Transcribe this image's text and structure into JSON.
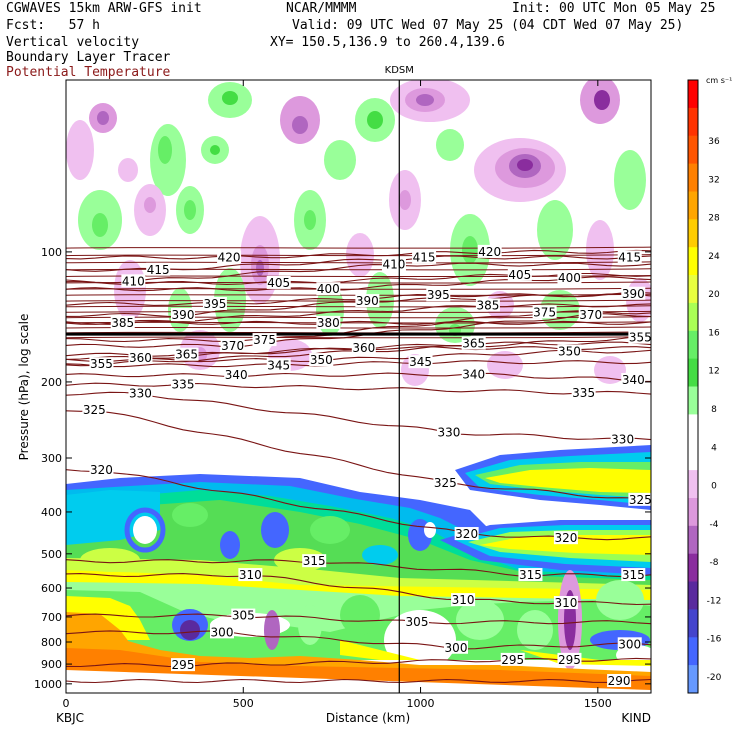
{
  "header": {
    "model": "CGWAVES 15km ARW-GFS init",
    "fcst": "Fcst:   57 h",
    "field1": "Vertical velocity",
    "field2": "Boundary Layer Tracer",
    "field3": "Potential Temperature",
    "org": "NCAR/MMMM",
    "init": "Init: 00 UTC Mon 05 May 25",
    "valid": "Valid: 09 UTC Wed 07 May 25 (04 CDT Wed 07 May 25)",
    "xy": "XY= 150.5,136.9 to 260.4,139.6"
  },
  "station_marker": "KDSM",
  "colorbar": {
    "unit": "cm s⁻¹",
    "tick_labels": [
      "36",
      "32",
      "28",
      "24",
      "20",
      "16",
      "12",
      "8",
      "4",
      "0",
      "-4",
      "-8",
      "-12",
      "-16",
      "-20"
    ],
    "colors": [
      "#ff0000",
      "#ff3300",
      "#ff5500",
      "#ff8000",
      "#ffa500",
      "#ffcc00",
      "#ffff00",
      "#e8ff40",
      "#aaff55",
      "#66ee66",
      "#44dd44",
      "#99ff99",
      "#ffffff",
      "#ffffff",
      "#f0c0f0",
      "#dd99dd",
      "#b066c0",
      "#8a2d9e",
      "#5a2a9e",
      "#4444cc",
      "#4466ff",
      "#6699ff"
    ]
  },
  "chart_data": {
    "type": "heatmap",
    "title": "",
    "xlabel": "Distance (km)",
    "ylabel": "Pressure (hPa), log scale",
    "x_ticks": [
      0,
      500,
      1000,
      1500
    ],
    "xlim": [
      0,
      1650
    ],
    "y_ticks": [
      100,
      200,
      300,
      400,
      500,
      600,
      700,
      800,
      900,
      1000
    ],
    "ylim": [
      1050,
      40
    ],
    "y_scale": "log",
    "x_endpoint_labels": [
      "KBJC",
      "KIND"
    ],
    "station_line_km": 940,
    "theta_labels": [
      {
        "t": "420",
        "x": 460,
        "p": 103
      },
      {
        "t": "415",
        "x": 260,
        "p": 110
      },
      {
        "t": "410",
        "x": 190,
        "p": 117
      },
      {
        "t": "410",
        "x": 925,
        "p": 107
      },
      {
        "t": "415",
        "x": 1010,
        "p": 103
      },
      {
        "t": "420",
        "x": 1195,
        "p": 100
      },
      {
        "t": "405",
        "x": 1280,
        "p": 113
      },
      {
        "t": "400",
        "x": 1420,
        "p": 115
      },
      {
        "t": "415",
        "x": 1590,
        "p": 103
      },
      {
        "t": "405",
        "x": 600,
        "p": 118
      },
      {
        "t": "400",
        "x": 740,
        "p": 122
      },
      {
        "t": "390",
        "x": 850,
        "p": 130
      },
      {
        "t": "395",
        "x": 1050,
        "p": 126
      },
      {
        "t": "385",
        "x": 1190,
        "p": 133
      },
      {
        "t": "375",
        "x": 1350,
        "p": 138
      },
      {
        "t": "370",
        "x": 1480,
        "p": 140
      },
      {
        "t": "390",
        "x": 1600,
        "p": 125
      },
      {
        "t": "395",
        "x": 420,
        "p": 132
      },
      {
        "t": "390",
        "x": 330,
        "p": 140
      },
      {
        "t": "380",
        "x": 740,
        "p": 146
      },
      {
        "t": "385",
        "x": 160,
        "p": 146
      },
      {
        "t": "375",
        "x": 560,
        "p": 160
      },
      {
        "t": "370",
        "x": 470,
        "p": 165
      },
      {
        "t": "365",
        "x": 340,
        "p": 173
      },
      {
        "t": "360",
        "x": 210,
        "p": 176
      },
      {
        "t": "355",
        "x": 100,
        "p": 182
      },
      {
        "t": "350",
        "x": 720,
        "p": 178
      },
      {
        "t": "345",
        "x": 600,
        "p": 183
      },
      {
        "t": "340",
        "x": 480,
        "p": 193
      },
      {
        "t": "360",
        "x": 840,
        "p": 167
      },
      {
        "t": "345",
        "x": 1000,
        "p": 180
      },
      {
        "t": "365",
        "x": 1150,
        "p": 163
      },
      {
        "t": "355",
        "x": 1620,
        "p": 158
      },
      {
        "t": "350",
        "x": 1420,
        "p": 170
      },
      {
        "t": "340",
        "x": 1150,
        "p": 192
      },
      {
        "t": "340",
        "x": 1600,
        "p": 198
      },
      {
        "t": "335",
        "x": 1460,
        "p": 212
      },
      {
        "t": "335",
        "x": 330,
        "p": 203
      },
      {
        "t": "330",
        "x": 210,
        "p": 213
      },
      {
        "t": "325",
        "x": 80,
        "p": 232
      },
      {
        "t": "330",
        "x": 1570,
        "p": 272
      },
      {
        "t": "330",
        "x": 1080,
        "p": 262
      },
      {
        "t": "320",
        "x": 100,
        "p": 320
      },
      {
        "t": "325",
        "x": 1070,
        "p": 343
      },
      {
        "t": "325",
        "x": 1620,
        "p": 375
      },
      {
        "t": "320",
        "x": 1130,
        "p": 450
      },
      {
        "t": "320",
        "x": 1410,
        "p": 460
      },
      {
        "t": "315",
        "x": 700,
        "p": 520
      },
      {
        "t": "315",
        "x": 1310,
        "p": 560
      },
      {
        "t": "315",
        "x": 1600,
        "p": 560
      },
      {
        "t": "310",
        "x": 520,
        "p": 560
      },
      {
        "t": "310",
        "x": 1120,
        "p": 640
      },
      {
        "t": "310",
        "x": 1410,
        "p": 650
      },
      {
        "t": "305",
        "x": 500,
        "p": 695
      },
      {
        "t": "305",
        "x": 990,
        "p": 720
      },
      {
        "t": "300",
        "x": 440,
        "p": 760
      },
      {
        "t": "300",
        "x": 1100,
        "p": 825
      },
      {
        "t": "300",
        "x": 1590,
        "p": 810
      },
      {
        "t": "295",
        "x": 330,
        "p": 905
      },
      {
        "t": "295",
        "x": 1260,
        "p": 880
      },
      {
        "t": "295",
        "x": 1420,
        "p": 880
      },
      {
        "t": "290",
        "x": 1560,
        "p": 985
      }
    ]
  }
}
